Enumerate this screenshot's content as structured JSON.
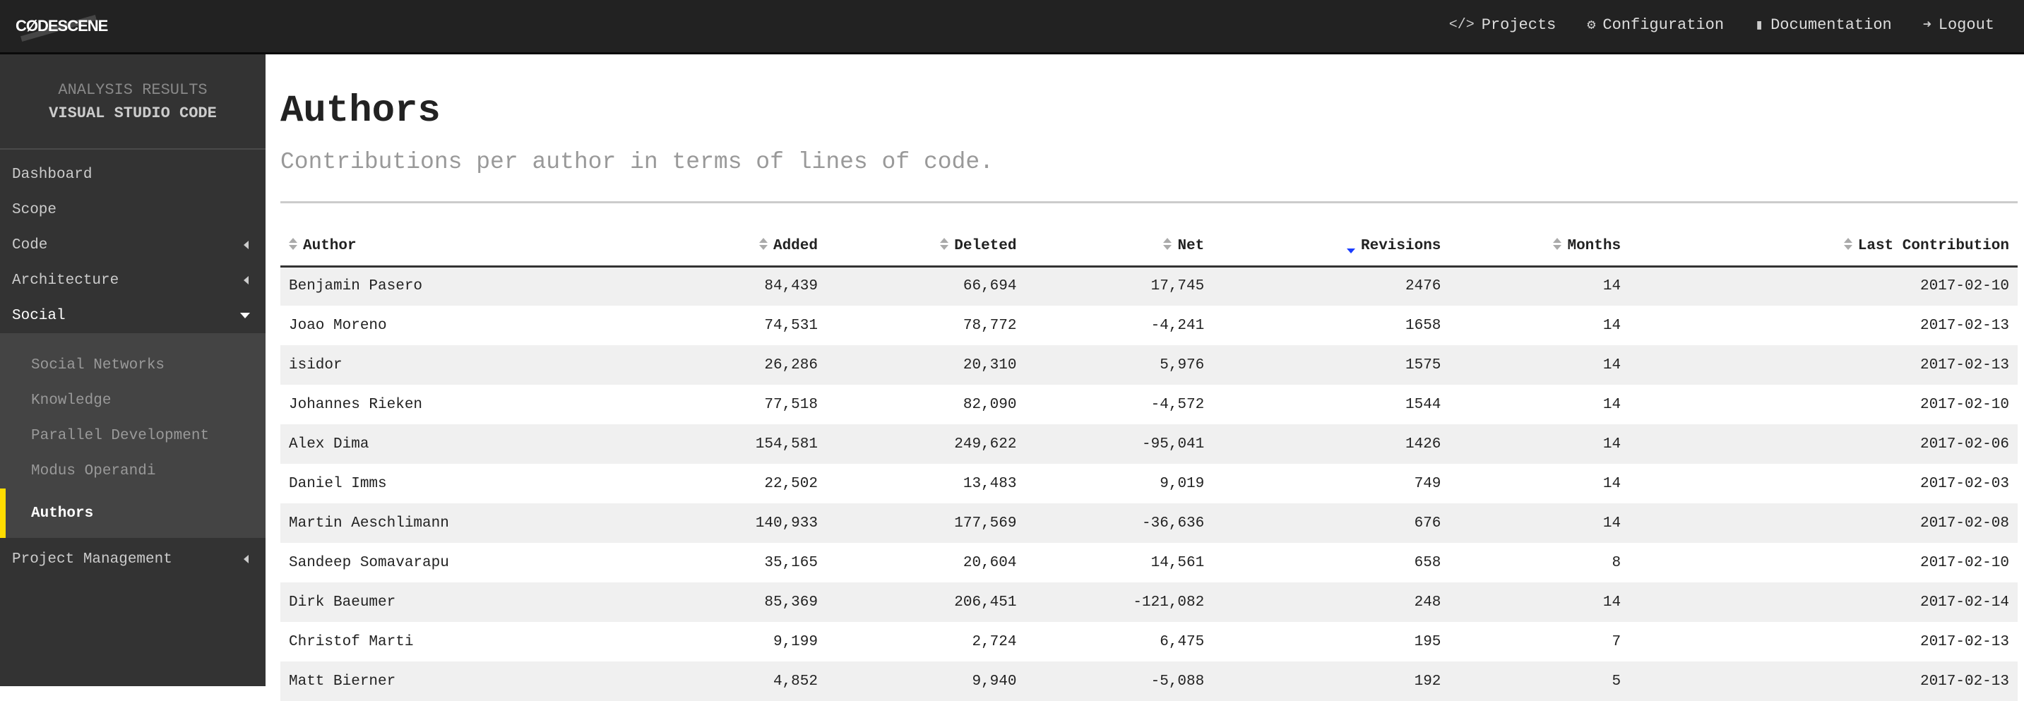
{
  "topbar": {
    "logo": "CØDESCENE",
    "nav": [
      {
        "label": "Projects",
        "icon": "code-icon",
        "glyph": "</>"
      },
      {
        "label": "Configuration",
        "icon": "gears-icon",
        "glyph": "⚙"
      },
      {
        "label": "Documentation",
        "icon": "book-icon",
        "glyph": "▮"
      },
      {
        "label": "Logout",
        "icon": "sign-out-icon",
        "glyph": "➜"
      }
    ]
  },
  "sidebar": {
    "heading": "ANALYSIS RESULTS",
    "project": "VISUAL STUDIO CODE",
    "items": [
      {
        "label": "Dashboard"
      },
      {
        "label": "Scope"
      },
      {
        "label": "Code"
      },
      {
        "label": "Architecture"
      },
      {
        "label": "Social"
      },
      {
        "label": "Project Management"
      }
    ],
    "social_sub": [
      {
        "label": "Social Networks"
      },
      {
        "label": "Knowledge"
      },
      {
        "label": "Parallel Development"
      },
      {
        "label": "Modus Operandi"
      },
      {
        "label": "Authors"
      }
    ],
    "accent": "#ffdd00"
  },
  "page": {
    "title": "Authors",
    "subtitle": "Contributions per author in terms of lines of code."
  },
  "table": {
    "sorted_by": "Revisions",
    "sort_direction": "descending",
    "columns": [
      "Author",
      "Added",
      "Deleted",
      "Net",
      "Revisions",
      "Months",
      "Last Contribution"
    ],
    "rows": [
      [
        "Benjamin Pasero",
        "84,439",
        "66,694",
        "17,745",
        "2476",
        "14",
        "2017-02-10"
      ],
      [
        "Joao Moreno",
        "74,531",
        "78,772",
        "-4,241",
        "1658",
        "14",
        "2017-02-13"
      ],
      [
        "isidor",
        "26,286",
        "20,310",
        "5,976",
        "1575",
        "14",
        "2017-02-13"
      ],
      [
        "Johannes Rieken",
        "77,518",
        "82,090",
        "-4,572",
        "1544",
        "14",
        "2017-02-10"
      ],
      [
        "Alex Dima",
        "154,581",
        "249,622",
        "-95,041",
        "1426",
        "14",
        "2017-02-06"
      ],
      [
        "Daniel Imms",
        "22,502",
        "13,483",
        "9,019",
        "749",
        "14",
        "2017-02-03"
      ],
      [
        "Martin Aeschlimann",
        "140,933",
        "177,569",
        "-36,636",
        "676",
        "14",
        "2017-02-08"
      ],
      [
        "Sandeep Somavarapu",
        "35,165",
        "20,604",
        "14,561",
        "658",
        "8",
        "2017-02-10"
      ],
      [
        "Dirk Baeumer",
        "85,369",
        "206,451",
        "-121,082",
        "248",
        "14",
        "2017-02-14"
      ],
      [
        "Christof Marti",
        "9,199",
        "2,724",
        "6,475",
        "195",
        "7",
        "2017-02-13"
      ],
      [
        "Matt Bierner",
        "4,852",
        "9,940",
        "-5,088",
        "192",
        "5",
        "2017-02-13"
      ]
    ]
  }
}
